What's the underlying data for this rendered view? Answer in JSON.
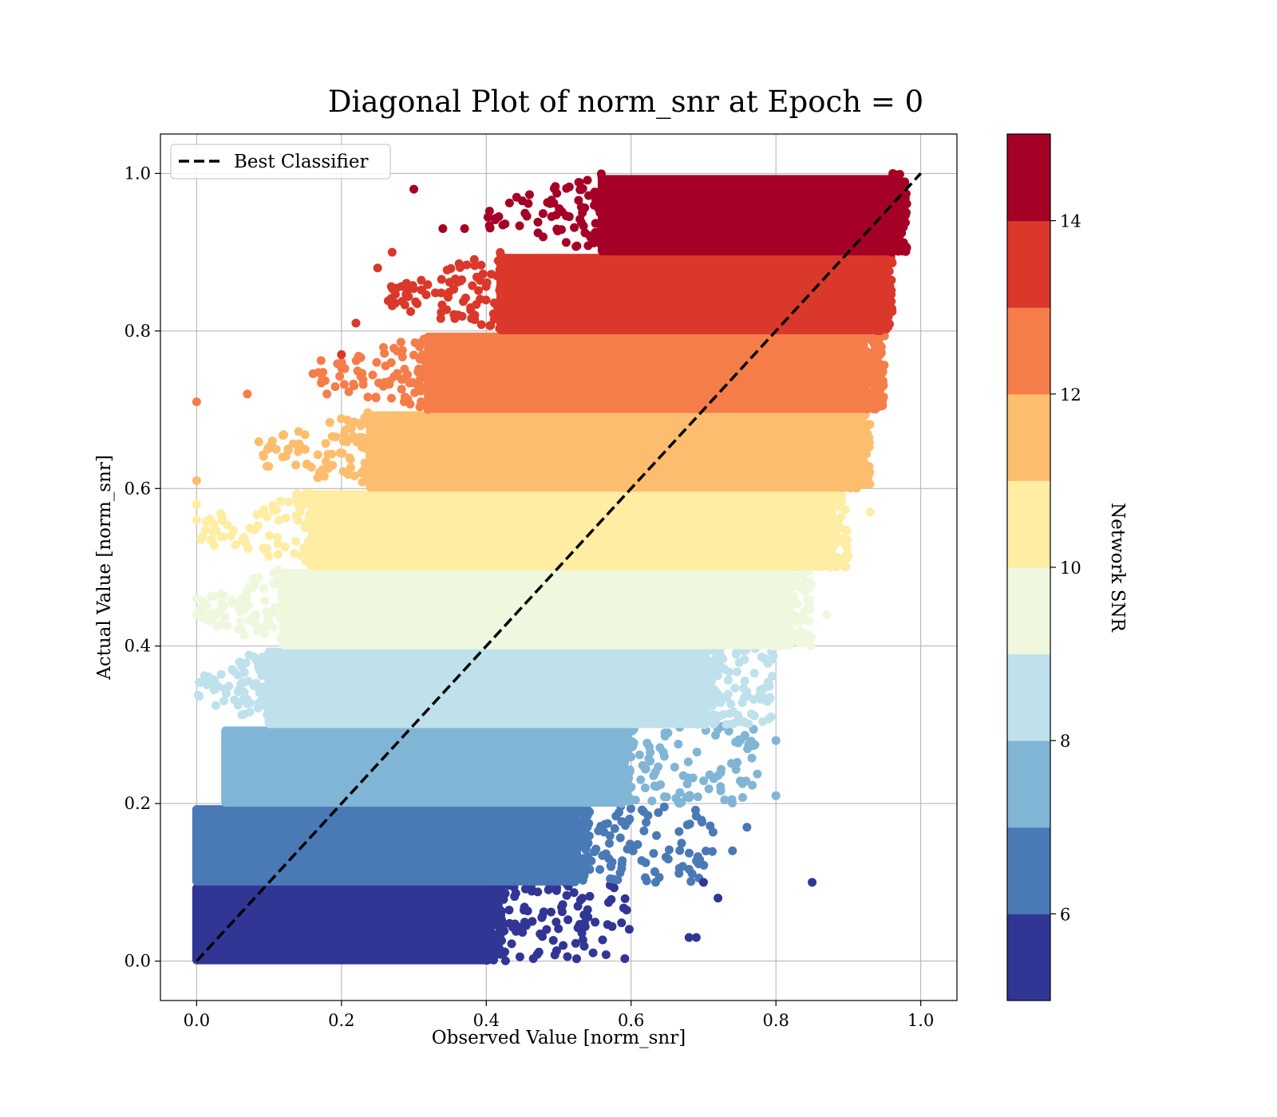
{
  "chart_data": {
    "type": "scatter",
    "title": "Diagonal Plot of norm_snr at Epoch = 0",
    "xlabel": "Observed Value [norm_snr]",
    "ylabel": "Actual Value [norm_snr]",
    "xlim": [
      -0.05,
      1.05
    ],
    "ylim": [
      -0.05,
      1.05
    ],
    "xticks": [
      "0.0",
      "0.2",
      "0.4",
      "0.6",
      "0.8",
      "1.0"
    ],
    "yticks": [
      "0.0",
      "0.2",
      "0.4",
      "0.6",
      "0.8",
      "1.0"
    ],
    "grid": true,
    "legend": {
      "location": "upper-left",
      "entries": [
        "Best Classifier"
      ]
    },
    "reference_line": {
      "name": "Best Classifier",
      "style": "dashed",
      "color": "#000000",
      "x": [
        0,
        1
      ],
      "y": [
        0,
        1
      ]
    },
    "colorbar": {
      "label": "Network SNR",
      "range": [
        5,
        15
      ],
      "ticks": [
        "6",
        "8",
        "10",
        "12",
        "14"
      ],
      "bins": [
        {
          "from": 5,
          "to": 6,
          "color": "#313695"
        },
        {
          "from": 6,
          "to": 7,
          "color": "#4a7ab6"
        },
        {
          "from": 7,
          "to": 8,
          "color": "#81b5d6"
        },
        {
          "from": 8,
          "to": 9,
          "color": "#bfe1ec"
        },
        {
          "from": 9,
          "to": 10,
          "color": "#eff8de"
        },
        {
          "from": 10,
          "to": 11,
          "color": "#feeda3"
        },
        {
          "from": 11,
          "to": 12,
          "color": "#fcbe6e"
        },
        {
          "from": 12,
          "to": 13,
          "color": "#f57d4a"
        },
        {
          "from": 13,
          "to": 14,
          "color": "#da382a"
        },
        {
          "from": 14,
          "to": 15,
          "color": "#a50026"
        }
      ]
    },
    "bands": [
      {
        "snr_bin": 0,
        "actual_range": [
          0.0,
          0.1
        ],
        "observed_core": [
          0.0,
          0.4
        ],
        "observed_spread": [
          0.4,
          0.6
        ]
      },
      {
        "snr_bin": 1,
        "actual_range": [
          0.1,
          0.2
        ],
        "observed_core": [
          0.0,
          0.52
        ],
        "observed_spread": [
          0.52,
          0.72
        ]
      },
      {
        "snr_bin": 2,
        "actual_range": [
          0.2,
          0.3
        ],
        "observed_core": [
          0.04,
          0.58
        ],
        "observed_spread": [
          0.58,
          0.78
        ]
      },
      {
        "snr_bin": 3,
        "actual_range": [
          0.3,
          0.4
        ],
        "observed_core": [
          0.1,
          0.7
        ],
        "observed_spread": [
          0.7,
          0.8
        ]
      },
      {
        "snr_bin": 4,
        "actual_range": [
          0.4,
          0.5
        ],
        "observed_core": [
          0.12,
          0.8
        ],
        "observed_spread": [
          0.8,
          0.85
        ]
      },
      {
        "snr_bin": 5,
        "actual_range": [
          0.5,
          0.6
        ],
        "observed_core": [
          0.16,
          0.86
        ],
        "observed_spread": [
          0.86,
          0.9
        ]
      },
      {
        "snr_bin": 6,
        "actual_range": [
          0.6,
          0.7
        ],
        "observed_core": [
          0.24,
          0.9
        ],
        "observed_spread": [
          0.9,
          0.93
        ]
      },
      {
        "snr_bin": 7,
        "actual_range": [
          0.7,
          0.8
        ],
        "observed_core": [
          0.32,
          0.92
        ],
        "observed_spread": [
          0.92,
          0.95
        ]
      },
      {
        "snr_bin": 8,
        "actual_range": [
          0.8,
          0.9
        ],
        "observed_core": [
          0.42,
          0.94
        ],
        "observed_spread": [
          0.94,
          0.96
        ]
      },
      {
        "snr_bin": 9,
        "actual_range": [
          0.9,
          1.0
        ],
        "observed_core": [
          0.56,
          0.96
        ],
        "observed_spread": [
          0.96,
          0.97
        ]
      }
    ],
    "notable_points": [
      {
        "x": 0.0,
        "y": 0.71,
        "snr_bin": 7
      },
      {
        "x": 0.07,
        "y": 0.72,
        "snr_bin": 7
      },
      {
        "x": 0.0,
        "y": 0.61,
        "snr_bin": 6
      },
      {
        "x": 0.0,
        "y": 0.58,
        "snr_bin": 5
      },
      {
        "x": 0.0,
        "y": 0.56,
        "snr_bin": 5
      },
      {
        "x": 0.0,
        "y": 0.46,
        "snr_bin": 4
      },
      {
        "x": 0.0,
        "y": 0.44,
        "snr_bin": 4
      },
      {
        "x": 0.3,
        "y": 0.98,
        "snr_bin": 9
      },
      {
        "x": 0.18,
        "y": 0.72,
        "snr_bin": 7
      },
      {
        "x": 0.2,
        "y": 0.77,
        "snr_bin": 8
      },
      {
        "x": 0.22,
        "y": 0.81,
        "snr_bin": 8
      },
      {
        "x": 0.25,
        "y": 0.88,
        "snr_bin": 8
      },
      {
        "x": 0.27,
        "y": 0.9,
        "snr_bin": 8
      },
      {
        "x": 0.34,
        "y": 0.93,
        "snr_bin": 9
      },
      {
        "x": 0.37,
        "y": 0.93,
        "snr_bin": 9
      },
      {
        "x": 0.93,
        "y": 0.57,
        "snr_bin": 5
      },
      {
        "x": 0.87,
        "y": 0.44,
        "snr_bin": 4
      },
      {
        "x": 0.8,
        "y": 0.28,
        "snr_bin": 2
      },
      {
        "x": 0.8,
        "y": 0.21,
        "snr_bin": 2
      },
      {
        "x": 0.76,
        "y": 0.17,
        "snr_bin": 1
      },
      {
        "x": 0.85,
        "y": 0.1,
        "snr_bin": 0
      },
      {
        "x": 0.72,
        "y": 0.08,
        "snr_bin": 0
      },
      {
        "x": 0.7,
        "y": 0.1,
        "snr_bin": 0
      },
      {
        "x": 0.68,
        "y": 0.03,
        "snr_bin": 0
      },
      {
        "x": 0.69,
        "y": 0.03,
        "snr_bin": 0
      },
      {
        "x": 0.74,
        "y": 0.14,
        "snr_bin": 1
      }
    ]
  }
}
